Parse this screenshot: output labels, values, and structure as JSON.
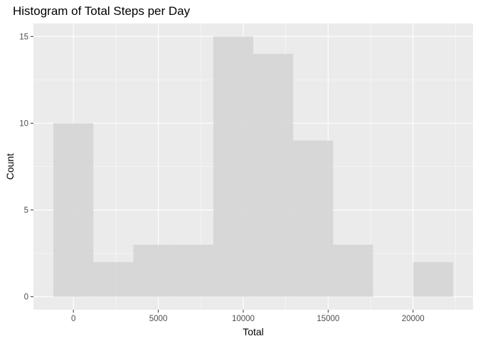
{
  "chart_data": {
    "type": "histogram",
    "title": "Histogram of Total Steps per Day",
    "xlabel": "Total",
    "ylabel": "Count",
    "bin_width": 2353,
    "bins": [
      {
        "start": -1177,
        "end": 1177,
        "count": 10
      },
      {
        "start": 1177,
        "end": 3530,
        "count": 2
      },
      {
        "start": 3530,
        "end": 5883,
        "count": 3
      },
      {
        "start": 5883,
        "end": 8236,
        "count": 3
      },
      {
        "start": 8236,
        "end": 10589,
        "count": 15
      },
      {
        "start": 10589,
        "end": 12942,
        "count": 14
      },
      {
        "start": 12942,
        "end": 15295,
        "count": 9
      },
      {
        "start": 15295,
        "end": 17648,
        "count": 3
      },
      {
        "start": 17648,
        "end": 20001,
        "count": 0
      },
      {
        "start": 20001,
        "end": 22354,
        "count": 2
      }
    ],
    "xlim": [
      -2353,
      23530
    ],
    "ylim": [
      -0.75,
      15.75
    ],
    "x_ticks": [
      0,
      5000,
      10000,
      15000,
      20000
    ],
    "x_tick_labels": [
      "0",
      "5000",
      "10000",
      "15000",
      "20000"
    ],
    "y_ticks": [
      0,
      5,
      10,
      15
    ],
    "y_tick_labels": [
      "0",
      "5",
      "10",
      "15"
    ],
    "grid": true,
    "colors": {
      "panel_background": "#ebebeb",
      "grid_major": "#ffffff",
      "bar_fill": "#d3d3d3",
      "bar_opacity": 0.85
    }
  }
}
